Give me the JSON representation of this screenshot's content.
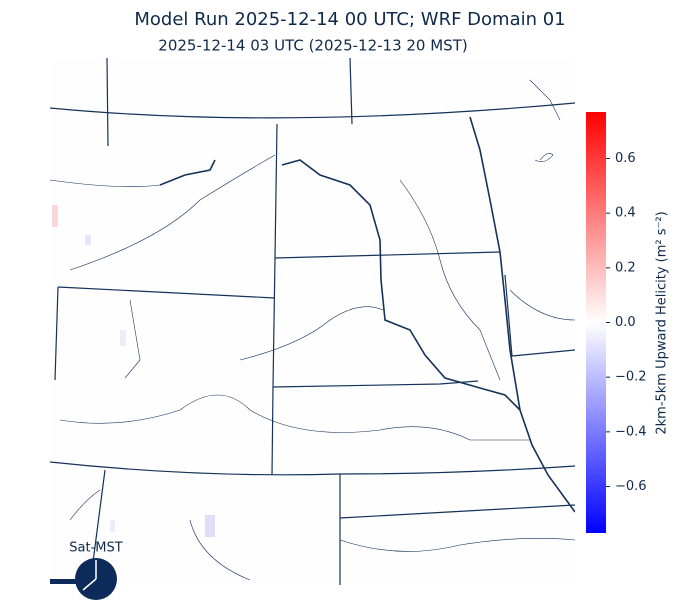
{
  "title": "Model Run 2025-12-14 00 UTC; WRF Domain 01",
  "subtitle": "2025-12-14 03 UTC  (2025-12-13 20 MST)",
  "clock_label": "Sat-MST",
  "colorbar": {
    "label": "2km-5km Upward Helicity (m² s⁻²)",
    "lim": [
      -0.77,
      0.77
    ],
    "ticks": [
      {
        "value": -0.6,
        "label": "−0.6"
      },
      {
        "value": -0.4,
        "label": "−0.4"
      },
      {
        "value": -0.2,
        "label": "−0.2"
      },
      {
        "value": 0,
        "label": "0.0"
      },
      0.2,
      0.4,
      0.6
    ]
  }
}
